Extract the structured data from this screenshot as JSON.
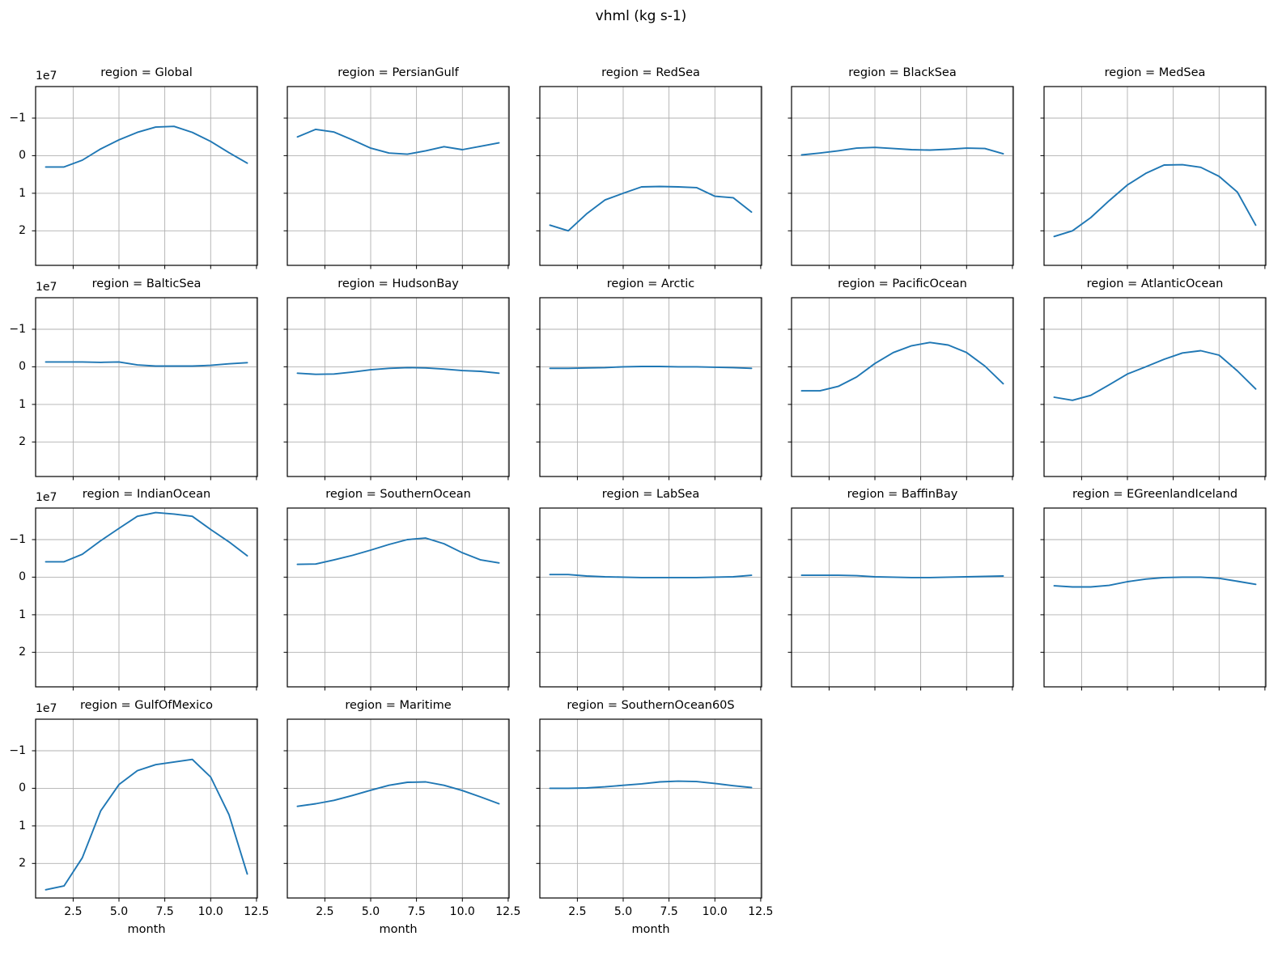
{
  "figure": {
    "title": "vhml (kg s-1)"
  },
  "chart_data": {
    "type": "line",
    "layout": "facet_grid_col_wrap_5",
    "title": "vhml (kg s-1)",
    "xlabel": "month",
    "facet_title_prefix": "region = ",
    "x": [
      1,
      2,
      3,
      4,
      5,
      6,
      7,
      8,
      9,
      10,
      11,
      12
    ],
    "x_tick_labels": [
      "2.5",
      "5.0",
      "7.5",
      "10.0",
      "12.5"
    ],
    "x_tick_values": [
      2.5,
      5.0,
      7.5,
      10.0,
      12.5
    ],
    "xlim": [
      0.45,
      12.55
    ],
    "y_tick_labels": [
      "−1",
      "0",
      "1",
      "2"
    ],
    "y_tick_values": [
      -1,
      0,
      1,
      2
    ],
    "y_axis_inverted": true,
    "ylim_top": -1.84,
    "ylim_bottom": 2.92,
    "y_offset_label": "1e7",
    "value_scale": "1e7 kg s-1",
    "grid": true,
    "line_color": "#1f77b4",
    "grid_color": "#b0b0b0",
    "spine_color": "#000000",
    "series": [
      {
        "name": "Global",
        "values": [
          0.3,
          0.3,
          0.12,
          -0.18,
          -0.42,
          -0.62,
          -0.76,
          -0.78,
          -0.62,
          -0.38,
          -0.08,
          0.2
        ]
      },
      {
        "name": "PersianGulf",
        "values": [
          -0.5,
          -0.7,
          -0.63,
          -0.42,
          -0.2,
          -0.07,
          -0.04,
          -0.13,
          -0.24,
          -0.16,
          -0.25,
          -0.34
        ]
      },
      {
        "name": "RedSea",
        "values": [
          1.85,
          2.0,
          1.55,
          1.18,
          1.0,
          0.83,
          0.82,
          0.83,
          0.85,
          1.08,
          1.12,
          1.5
        ]
      },
      {
        "name": "BlackSea",
        "values": [
          -0.02,
          -0.07,
          -0.13,
          -0.2,
          -0.22,
          -0.19,
          -0.16,
          -0.15,
          -0.17,
          -0.2,
          -0.19,
          -0.05
        ]
      },
      {
        "name": "MedSea",
        "values": [
          2.15,
          2.0,
          1.65,
          1.2,
          0.78,
          0.47,
          0.25,
          0.24,
          0.31,
          0.55,
          0.97,
          1.85
        ]
      },
      {
        "name": "BalticSea",
        "values": [
          -0.13,
          -0.13,
          -0.13,
          -0.12,
          -0.13,
          -0.05,
          -0.02,
          -0.02,
          -0.02,
          -0.04,
          -0.08,
          -0.11
        ]
      },
      {
        "name": "HudsonBay",
        "values": [
          0.17,
          0.2,
          0.19,
          0.14,
          0.08,
          0.04,
          0.02,
          0.03,
          0.06,
          0.1,
          0.12,
          0.17
        ]
      },
      {
        "name": "Arctic",
        "values": [
          0.04,
          0.04,
          0.03,
          0.02,
          0.0,
          -0.01,
          -0.01,
          0.0,
          0.0,
          0.01,
          0.02,
          0.04
        ]
      },
      {
        "name": "PacificOcean",
        "values": [
          0.64,
          0.64,
          0.52,
          0.27,
          -0.09,
          -0.38,
          -0.56,
          -0.65,
          -0.58,
          -0.38,
          -0.02,
          0.45
        ]
      },
      {
        "name": "AtlanticOcean",
        "values": [
          0.81,
          0.89,
          0.76,
          0.48,
          0.19,
          0.0,
          -0.2,
          -0.37,
          -0.43,
          -0.31,
          0.11,
          0.59
        ]
      },
      {
        "name": "IndianOcean",
        "values": [
          -0.41,
          -0.41,
          -0.61,
          -0.97,
          -1.3,
          -1.62,
          -1.72,
          -1.68,
          -1.62,
          -1.27,
          -0.94,
          -0.57
        ]
      },
      {
        "name": "SouthernOcean",
        "values": [
          -0.34,
          -0.35,
          -0.46,
          -0.58,
          -0.72,
          -0.87,
          -1.0,
          -1.04,
          -0.89,
          -0.65,
          -0.46,
          -0.38
        ]
      },
      {
        "name": "LabSea",
        "values": [
          -0.07,
          -0.07,
          -0.03,
          -0.01,
          0.0,
          0.01,
          0.01,
          0.01,
          0.01,
          0.0,
          -0.01,
          -0.05
        ]
      },
      {
        "name": "BaffinBay",
        "values": [
          -0.05,
          -0.05,
          -0.05,
          -0.04,
          -0.01,
          0.0,
          0.01,
          0.01,
          0.0,
          -0.01,
          -0.02,
          -0.03
        ]
      },
      {
        "name": "EGreenlandIceland",
        "values": [
          0.23,
          0.26,
          0.26,
          0.22,
          0.12,
          0.05,
          0.01,
          0.0,
          0.0,
          0.03,
          0.11,
          0.19
        ]
      },
      {
        "name": "GulfOfMexico",
        "values": [
          2.7,
          2.6,
          1.85,
          0.6,
          -0.1,
          -0.47,
          -0.63,
          -0.7,
          -0.77,
          -0.3,
          0.7,
          2.28
        ]
      },
      {
        "name": "Maritime",
        "values": [
          0.48,
          0.41,
          0.32,
          0.19,
          0.05,
          -0.08,
          -0.16,
          -0.17,
          -0.08,
          0.06,
          0.23,
          0.41
        ]
      },
      {
        "name": "SouthernOcean60S",
        "values": [
          0.0,
          0.0,
          -0.01,
          -0.04,
          -0.08,
          -0.12,
          -0.17,
          -0.19,
          -0.18,
          -0.13,
          -0.07,
          -0.02
        ]
      }
    ]
  }
}
